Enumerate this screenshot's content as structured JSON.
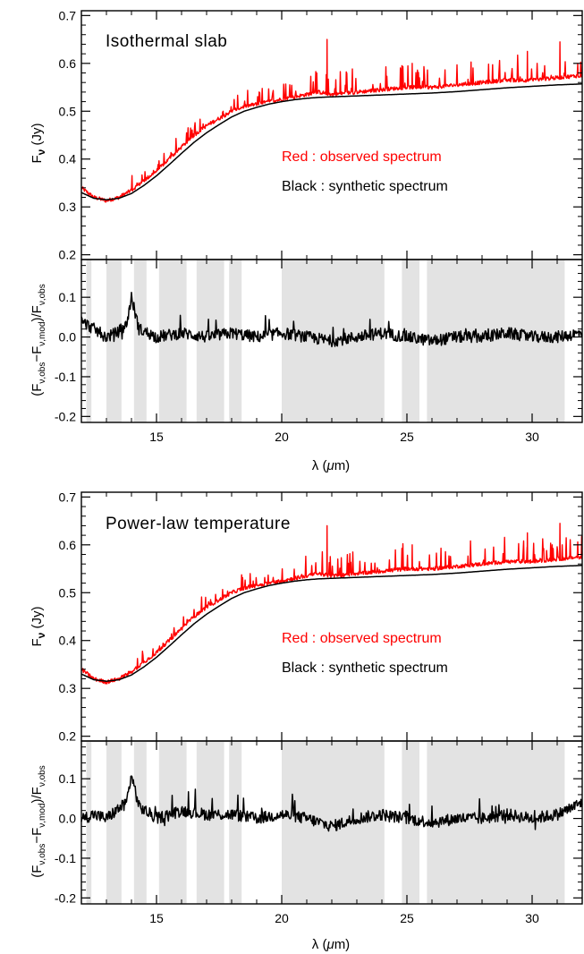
{
  "colors": {
    "observed": "#ff0000",
    "synthetic": "#000000",
    "band": "#e3e3e3",
    "residual": "#000000"
  },
  "chart_data": [
    {
      "type": "line",
      "title": "Isothermal slab",
      "ylabel": "F_ν (Jy)",
      "xlim": [
        12,
        32
      ],
      "ylim": [
        0.19,
        0.71
      ],
      "yticks": [
        0.2,
        0.3,
        0.4,
        0.5,
        0.6,
        0.7
      ],
      "yticklabels": [
        "0.2",
        "0.3",
        "0.4",
        "0.5",
        "0.6",
        "0.7"
      ],
      "legend": [
        "Red : observed spectrum",
        "Black : synthetic spectrum"
      ],
      "series": [
        {
          "name": "observed spectrum",
          "color": "#ff0000",
          "x": [
            12,
            12.5,
            13,
            13.5,
            14,
            14.5,
            15,
            15.5,
            16,
            16.5,
            17,
            17.5,
            18,
            18.5,
            19,
            19.5,
            20,
            20.5,
            21,
            21.5,
            22,
            23,
            24,
            25,
            26,
            27,
            28,
            29,
            30,
            31,
            32
          ],
          "y": [
            0.34,
            0.32,
            0.313,
            0.32,
            0.335,
            0.355,
            0.375,
            0.4,
            0.425,
            0.45,
            0.47,
            0.485,
            0.5,
            0.51,
            0.515,
            0.52,
            0.525,
            0.53,
            0.535,
            0.54,
            0.535,
            0.54,
            0.545,
            0.55,
            0.55,
            0.555,
            0.56,
            0.565,
            0.565,
            0.57,
            0.575
          ]
        },
        {
          "name": "synthetic spectrum",
          "color": "#000000",
          "x": [
            12,
            12.5,
            13,
            13.5,
            14,
            14.5,
            15,
            15.5,
            16,
            16.5,
            17,
            17.5,
            18,
            18.5,
            19,
            19.5,
            20,
            20.5,
            21,
            21.5,
            22,
            23,
            24,
            25,
            26,
            27,
            28,
            29,
            30,
            31,
            32
          ],
          "y": [
            0.33,
            0.318,
            0.315,
            0.318,
            0.328,
            0.345,
            0.365,
            0.388,
            0.412,
            0.435,
            0.455,
            0.472,
            0.488,
            0.5,
            0.508,
            0.515,
            0.52,
            0.524,
            0.527,
            0.529,
            0.53,
            0.532,
            0.534,
            0.536,
            0.538,
            0.541,
            0.545,
            0.549,
            0.552,
            0.555,
            0.557
          ]
        }
      ],
      "spikes": [
        {
          "x": 21.8,
          "y": 0.65
        },
        {
          "x": 31.1,
          "y": 0.645
        },
        {
          "x": 29.8,
          "y": 0.625
        },
        {
          "x": 25.2,
          "y": 0.6
        }
      ]
    },
    {
      "type": "line",
      "xlabel": "λ (μm)",
      "ylabel": "(F_ν,obs − F_ν,mod)/F_ν,obs",
      "xlim": [
        12,
        32
      ],
      "ylim": [
        -0.215,
        0.195
      ],
      "xticks": [
        15,
        20,
        25,
        30
      ],
      "xticklabels": [
        "15",
        "20",
        "25",
        "30"
      ],
      "yticks": [
        -0.2,
        -0.1,
        0.0,
        0.1
      ],
      "yticklabels": [
        "-0.2",
        "-0.1",
        "0.0",
        "0.1"
      ],
      "shaded_bands": [
        [
          12.2,
          12.4
        ],
        [
          13.0,
          13.6
        ],
        [
          14.1,
          14.6
        ],
        [
          15.1,
          16.2
        ],
        [
          16.6,
          17.7
        ],
        [
          17.9,
          18.4
        ],
        [
          20.0,
          24.1
        ],
        [
          24.8,
          25.5
        ],
        [
          25.8,
          31.3
        ]
      ],
      "series": [
        {
          "name": "residual",
          "color": "#000000",
          "x": [
            12,
            12.5,
            13,
            13.4,
            13.8,
            14,
            14.3,
            15,
            16,
            17,
            18,
            19,
            20,
            21,
            22,
            23,
            24,
            25,
            26,
            27,
            28,
            29,
            30,
            31,
            32
          ],
          "y": [
            0.04,
            0.02,
            0.0,
            0.01,
            0.03,
            0.1,
            0.02,
            0.0,
            0.01,
            0.0,
            0.01,
            0.0,
            0.01,
            0.0,
            -0.01,
            0.0,
            0.01,
            0.0,
            -0.01,
            0.0,
            0.0,
            0.01,
            0.0,
            0.0,
            0.01
          ]
        }
      ]
    },
    {
      "type": "line",
      "title": "Power-law temperature",
      "ylabel": "F_ν (Jy)",
      "xlim": [
        12,
        32
      ],
      "ylim": [
        0.19,
        0.71
      ],
      "yticks": [
        0.2,
        0.3,
        0.4,
        0.5,
        0.6,
        0.7
      ],
      "yticklabels": [
        "0.2",
        "0.3",
        "0.4",
        "0.5",
        "0.6",
        "0.7"
      ],
      "legend": [
        "Red : observed spectrum",
        "Black : synthetic spectrum"
      ],
      "series": [
        {
          "name": "observed spectrum",
          "color": "#ff0000",
          "x": [
            12,
            12.5,
            13,
            13.5,
            14,
            14.5,
            15,
            15.5,
            16,
            16.5,
            17,
            17.5,
            18,
            18.5,
            19,
            19.5,
            20,
            20.5,
            21,
            21.5,
            22,
            23,
            24,
            25,
            26,
            27,
            28,
            29,
            30,
            31,
            32
          ],
          "y": [
            0.34,
            0.32,
            0.313,
            0.32,
            0.335,
            0.355,
            0.375,
            0.4,
            0.425,
            0.45,
            0.47,
            0.485,
            0.5,
            0.51,
            0.515,
            0.52,
            0.525,
            0.53,
            0.535,
            0.54,
            0.535,
            0.54,
            0.545,
            0.55,
            0.55,
            0.555,
            0.56,
            0.565,
            0.565,
            0.57,
            0.575
          ]
        },
        {
          "name": "synthetic spectrum",
          "color": "#000000",
          "x": [
            12,
            12.5,
            13,
            13.5,
            14,
            14.5,
            15,
            15.5,
            16,
            16.5,
            17,
            17.5,
            18,
            18.5,
            19,
            19.5,
            20,
            20.5,
            21,
            21.5,
            22,
            23,
            24,
            25,
            26,
            27,
            28,
            29,
            30,
            31,
            32
          ],
          "y": [
            0.33,
            0.318,
            0.315,
            0.318,
            0.328,
            0.345,
            0.365,
            0.388,
            0.412,
            0.435,
            0.455,
            0.472,
            0.488,
            0.5,
            0.508,
            0.515,
            0.52,
            0.524,
            0.527,
            0.529,
            0.53,
            0.532,
            0.534,
            0.536,
            0.538,
            0.541,
            0.545,
            0.549,
            0.552,
            0.555,
            0.557
          ]
        }
      ],
      "spikes": [
        {
          "x": 21.8,
          "y": 0.64
        },
        {
          "x": 31.1,
          "y": 0.645
        },
        {
          "x": 29.8,
          "y": 0.625
        },
        {
          "x": 25.2,
          "y": 0.6
        }
      ]
    },
    {
      "type": "line",
      "xlabel": "λ (μm)",
      "ylabel": "(F_ν,obs − F_ν,mod)/F_ν,obs",
      "xlim": [
        12,
        32
      ],
      "ylim": [
        -0.215,
        0.195
      ],
      "xticks": [
        15,
        20,
        25,
        30
      ],
      "xticklabels": [
        "15",
        "20",
        "25",
        "30"
      ],
      "yticks": [
        -0.2,
        -0.1,
        0.0,
        0.1
      ],
      "yticklabels": [
        "-0.2",
        "-0.1",
        "0.0",
        "0.1"
      ],
      "shaded_bands": [
        [
          12.2,
          12.4
        ],
        [
          13.0,
          13.6
        ],
        [
          14.1,
          14.6
        ],
        [
          15.1,
          16.2
        ],
        [
          16.6,
          17.7
        ],
        [
          17.9,
          18.4
        ],
        [
          20.0,
          24.1
        ],
        [
          24.8,
          25.5
        ],
        [
          25.8,
          31.3
        ]
      ],
      "series": [
        {
          "name": "residual",
          "color": "#000000",
          "x": [
            12,
            12.5,
            13,
            13.4,
            13.8,
            14,
            14.3,
            15,
            16,
            17,
            18,
            19,
            20,
            21,
            22,
            23,
            24,
            25,
            26,
            27,
            28,
            29,
            30,
            31,
            32
          ],
          "y": [
            0.0,
            0.01,
            0.0,
            0.02,
            0.04,
            0.11,
            0.03,
            0.0,
            0.02,
            0.01,
            0.01,
            0.0,
            0.01,
            0.0,
            -0.02,
            0.0,
            0.01,
            0.0,
            -0.01,
            0.0,
            0.0,
            0.01,
            0.0,
            0.01,
            0.04
          ]
        }
      ]
    }
  ]
}
